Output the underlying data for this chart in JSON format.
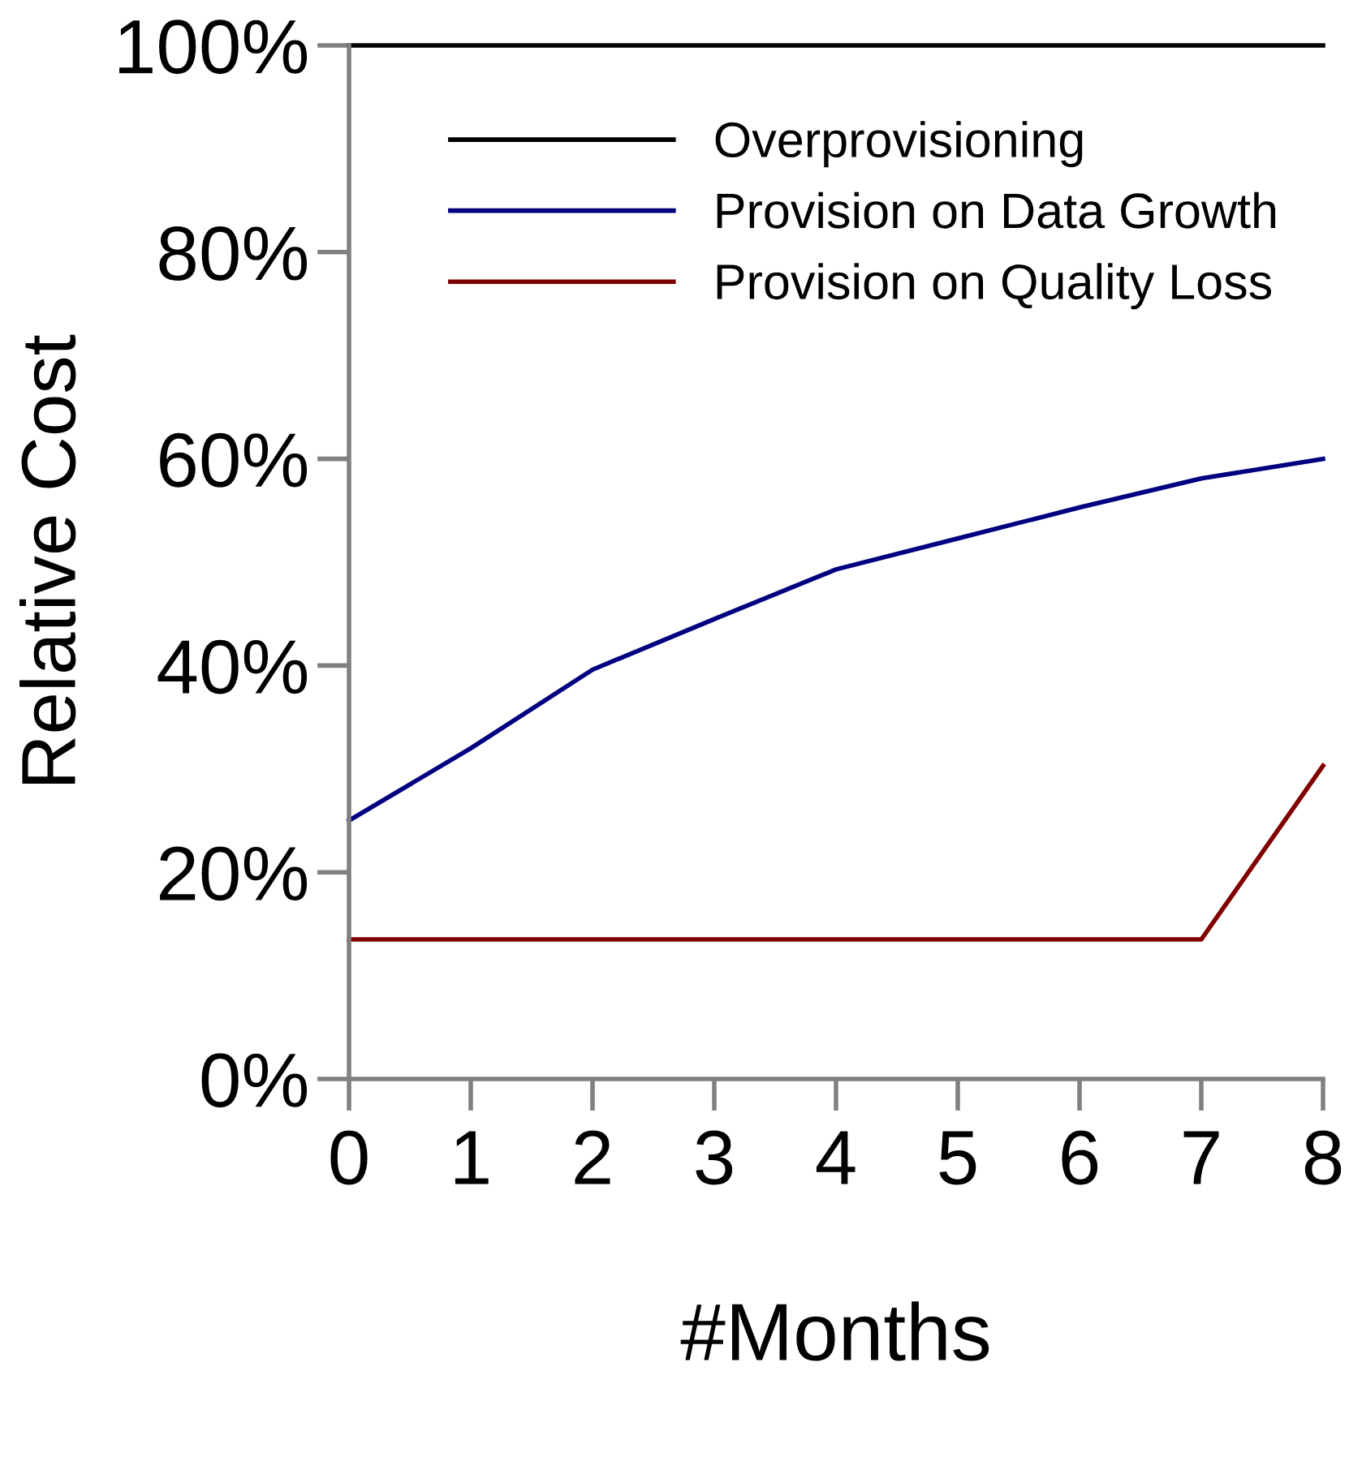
{
  "chart_data": {
    "type": "line",
    "xlabel": "#Months",
    "ylabel": "Relative Cost",
    "x": [
      0,
      1,
      2,
      3,
      4,
      5,
      6,
      7,
      8
    ],
    "xlim": [
      0,
      8
    ],
    "xticks": [
      0,
      1,
      2,
      3,
      4,
      5,
      6,
      7,
      8
    ],
    "ylim": [
      0,
      100
    ],
    "yticks": [
      {
        "value": 0,
        "label": "0%"
      },
      {
        "value": 20,
        "label": "20%"
      },
      {
        "value": 40,
        "label": "40%"
      },
      {
        "value": 60,
        "label": "60%"
      },
      {
        "value": 80,
        "label": "80%"
      },
      {
        "value": 100,
        "label": "100%"
      }
    ],
    "grid": false,
    "legend": "top right",
    "marker": "none",
    "line_style": "solid",
    "series": [
      {
        "name": "Overprovisioning",
        "color": "#000000",
        "values": [
          100,
          100,
          100,
          100,
          100,
          100,
          100,
          100,
          100
        ]
      },
      {
        "name": "Provision on Data Growth",
        "color": "#000080",
        "values": [
          25,
          32,
          39.6,
          44.5,
          49.3,
          52.3,
          55.3,
          58.1,
          60
        ]
      },
      {
        "name": "Provision on Quality Loss",
        "color": "#800000",
        "values": [
          13.5,
          13.5,
          13.5,
          13.5,
          13.5,
          13.5,
          13.5,
          13.5,
          30.3
        ]
      }
    ]
  }
}
